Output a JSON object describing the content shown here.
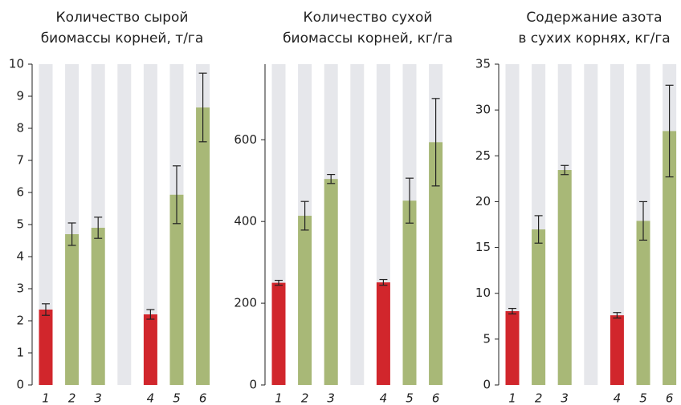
{
  "chart_data": [
    {
      "type": "bar",
      "title": [
        "Количество сырой",
        "биомассы корней, т/га"
      ],
      "categories": [
        "1",
        "2",
        "3",
        null,
        "4",
        "5",
        "6"
      ],
      "values": [
        2.35,
        4.7,
        4.9,
        null,
        2.2,
        5.93,
        8.65
      ],
      "errors": [
        0.18,
        0.35,
        0.33,
        null,
        0.15,
        0.9,
        1.07
      ],
      "colors": [
        "#d1262c",
        "#a8b877",
        "#a8b877",
        null,
        "#d1262c",
        "#a8b877",
        "#a8b877"
      ],
      "background_color": "#e6e7eb",
      "error_color": "#222",
      "ylim": [
        0,
        10
      ],
      "yticks": [
        0,
        1,
        2,
        3,
        4,
        5,
        6,
        7,
        8,
        9,
        10
      ]
    },
    {
      "type": "bar",
      "title": [
        "Количество сухой",
        "биомассы корней, кг/га"
      ],
      "categories": [
        "1",
        "2",
        "3",
        null,
        "4",
        "5",
        "6"
      ],
      "values": [
        250,
        414,
        504,
        null,
        251,
        451,
        594
      ],
      "errors": [
        6,
        35,
        11,
        null,
        7,
        55,
        107
      ],
      "colors": [
        "#d1262c",
        "#a8b877",
        "#a8b877",
        null,
        "#d1262c",
        "#a8b877",
        "#a8b877"
      ],
      "background_color": "#e6e7eb",
      "error_color": "#222",
      "ylim": [
        0,
        785
      ],
      "yticks": [
        0,
        200,
        400,
        600
      ]
    },
    {
      "type": "bar",
      "title": [
        "Содержание азота",
        "в сухих корнях, кг/га"
      ],
      "categories": [
        "1",
        "2",
        "3",
        null,
        "4",
        "5",
        "6"
      ],
      "values": [
        8.05,
        16.97,
        23.45,
        null,
        7.6,
        17.9,
        27.7
      ],
      "errors": [
        0.3,
        1.5,
        0.5,
        null,
        0.3,
        2.1,
        5
      ],
      "colors": [
        "#d1262c",
        "#a8b877",
        "#a8b877",
        null,
        "#d1262c",
        "#a8b877",
        "#a8b877"
      ],
      "background_color": "#e6e7eb",
      "error_color": "#222",
      "ylim": [
        0,
        35
      ],
      "yticks": [
        0,
        5,
        10,
        15,
        20,
        25,
        30,
        35
      ]
    }
  ]
}
